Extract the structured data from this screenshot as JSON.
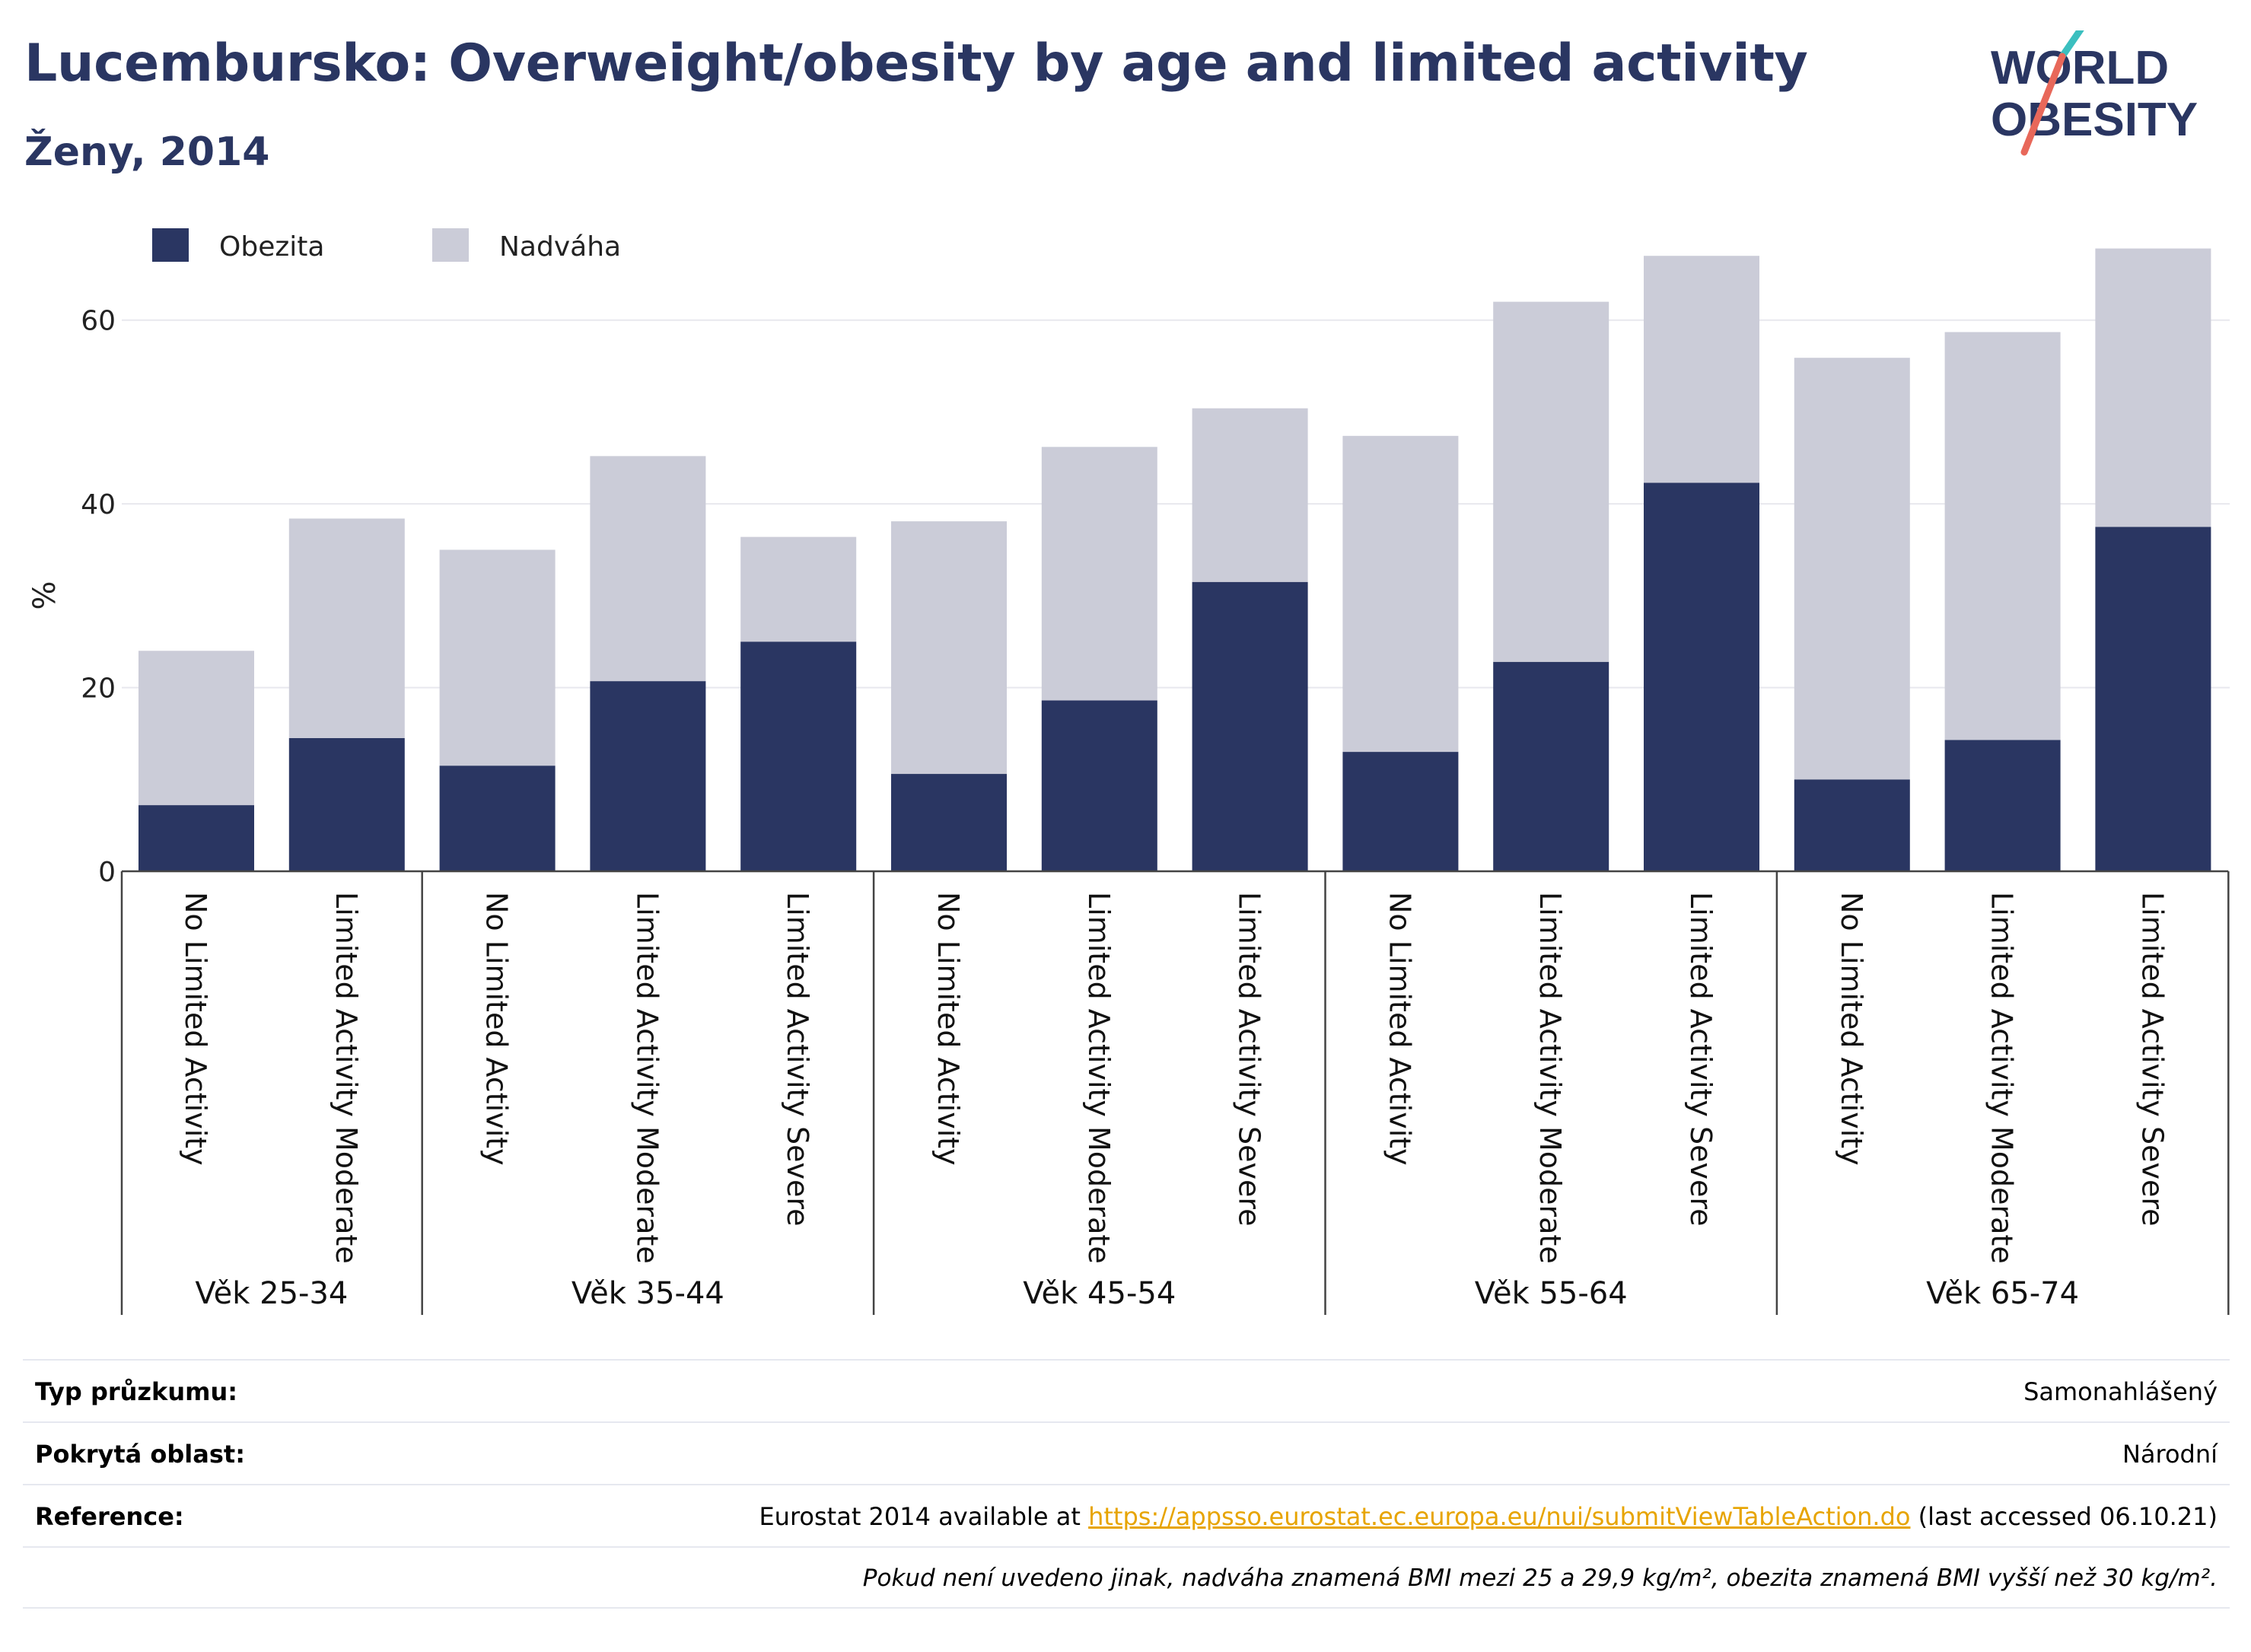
{
  "header": {
    "title": "Lucembursko: Overweight/obesity by age and limited activity",
    "subtitle": "Ženy, 2014",
    "logo_line1": "WORLD",
    "logo_line2": "OBESITY"
  },
  "colors": {
    "obesity": "#2a3662",
    "overweight": "#cbccd8",
    "title": "#2a3662",
    "logo_slash_top": "#3bbfbf",
    "logo_slash_bottom": "#e8685a",
    "link": "#e7a400"
  },
  "chart_data": {
    "type": "bar",
    "stacked": true,
    "ylabel": "%",
    "ylim": [
      0,
      70
    ],
    "yticks": [
      0,
      20,
      40,
      60
    ],
    "grid": true,
    "legend_position": "top-left",
    "groups": [
      {
        "label": "Věk 25-34",
        "categories": [
          "No Limited Activity",
          "Limited Activity Moderate"
        ]
      },
      {
        "label": "Věk 35-44",
        "categories": [
          "No Limited Activity",
          "Limited Activity Moderate",
          "Limited Activity Severe"
        ]
      },
      {
        "label": "Věk 45-54",
        "categories": [
          "No Limited Activity",
          "Limited Activity Moderate",
          "Limited Activity Severe"
        ]
      },
      {
        "label": "Věk 55-64",
        "categories": [
          "No Limited Activity",
          "Limited Activity Moderate",
          "Limited Activity Severe"
        ]
      },
      {
        "label": "Věk 65-74",
        "categories": [
          "No Limited Activity",
          "Limited Activity Moderate",
          "Limited Activity Severe"
        ]
      }
    ],
    "series": [
      {
        "name": "Obezita",
        "values": [
          7.2,
          14.5,
          11.5,
          20.7,
          25.0,
          10.6,
          18.6,
          31.5,
          13.0,
          22.8,
          42.3,
          10.0,
          14.3,
          37.5
        ]
      },
      {
        "name": "Nadváha",
        "values": [
          16.8,
          23.9,
          23.5,
          24.5,
          11.4,
          27.5,
          27.6,
          18.9,
          34.4,
          39.2,
          24.7,
          45.9,
          44.4,
          30.3
        ]
      }
    ]
  },
  "footer": {
    "rows": [
      {
        "label": "Typ průzkumu:",
        "value": "Samonahlášený"
      },
      {
        "label": "Pokrytá oblast:",
        "value": "Národní"
      },
      {
        "label": "Reference:",
        "value_prefix": "Eurostat 2014 available at ",
        "link": "https://appsso.eurostat.ec.europa.eu/nui/submitViewTableAction.do",
        "value_suffix": " (last accessed 06.10.21)"
      }
    ],
    "note": "Pokud není uvedeno jinak, nadváha znamená BMI mezi 25 a 29,9 kg/m², obezita znamená BMI vyšší než 30 kg/m²."
  }
}
